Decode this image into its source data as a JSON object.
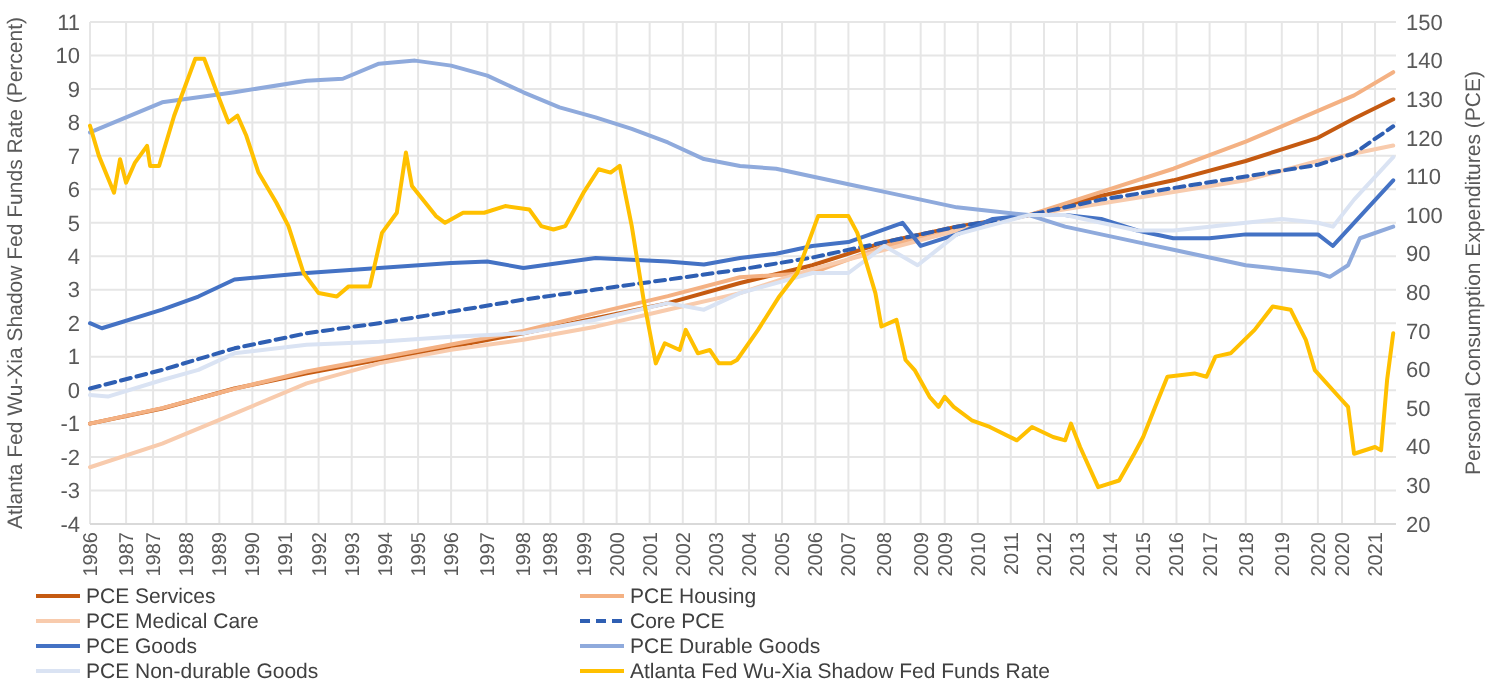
{
  "chart_data": {
    "type": "line",
    "ylabel": "Atlanta Fed Wu-Xia Shadow Fed Funds Rate (Percent)",
    "y2label": "Personal Consumption Expenditures (PCE)",
    "xlim": [
      "1986-01",
      "2022-03"
    ],
    "xticks": [
      {
        "value": "1986-01",
        "label": "1986"
      },
      {
        "value": "1987-01",
        "label": "1987"
      },
      {
        "value": "1987-10",
        "label": "1987"
      },
      {
        "value": "1988-09",
        "label": "1988"
      },
      {
        "value": "1989-08",
        "label": "1989"
      },
      {
        "value": "1990-07",
        "label": "1990"
      },
      {
        "value": "1991-06",
        "label": "1991"
      },
      {
        "value": "1992-05",
        "label": "1992"
      },
      {
        "value": "1993-04",
        "label": "1993"
      },
      {
        "value": "1994-03",
        "label": "1994"
      },
      {
        "value": "1995-02",
        "label": "1995"
      },
      {
        "value": "1996-01",
        "label": "1996"
      },
      {
        "value": "1997-01",
        "label": "1997"
      },
      {
        "value": "1998-01",
        "label": "1998"
      },
      {
        "value": "1998-10",
        "label": "1998"
      },
      {
        "value": "1999-09",
        "label": "1999"
      },
      {
        "value": "2000-08",
        "label": "2000"
      },
      {
        "value": "2001-07",
        "label": "2001"
      },
      {
        "value": "2002-06",
        "label": "2002"
      },
      {
        "value": "2003-05",
        "label": "2003"
      },
      {
        "value": "2004-04",
        "label": "2004"
      },
      {
        "value": "2005-03",
        "label": "2005"
      },
      {
        "value": "2006-02",
        "label": "2006"
      },
      {
        "value": "2007-01",
        "label": "2007"
      },
      {
        "value": "2008-01",
        "label": "2008"
      },
      {
        "value": "2009-01",
        "label": "2009"
      },
      {
        "value": "2009-09",
        "label": "2009"
      },
      {
        "value": "2010-08",
        "label": "2010"
      },
      {
        "value": "2011-07",
        "label": "2011"
      },
      {
        "value": "2012-06",
        "label": "2012"
      },
      {
        "value": "2013-05",
        "label": "2013"
      },
      {
        "value": "2014-04",
        "label": "2014"
      },
      {
        "value": "2015-03",
        "label": "2015"
      },
      {
        "value": "2016-02",
        "label": "2016"
      },
      {
        "value": "2017-01",
        "label": "2017"
      },
      {
        "value": "2018-01",
        "label": "2018"
      },
      {
        "value": "2019-01",
        "label": "2019"
      },
      {
        "value": "2020-01",
        "label": "2020"
      },
      {
        "value": "2020-09",
        "label": "2020"
      },
      {
        "value": "2021-08",
        "label": "2021"
      }
    ],
    "ylim": [
      -4,
      11
    ],
    "yticks": [
      -4,
      -3,
      -2,
      -1,
      0,
      1,
      2,
      3,
      4,
      5,
      6,
      7,
      8,
      9,
      10,
      11
    ],
    "y2lim": [
      20,
      150
    ],
    "y2ticks": [
      20,
      30,
      40,
      50,
      60,
      70,
      80,
      90,
      100,
      110,
      120,
      130,
      140,
      150
    ],
    "grid": true,
    "legend": "bottom",
    "line_style": "solid",
    "series": [
      {
        "name": "PCE Services",
        "color": "#c55a11",
        "axis": "y2",
        "x": [
          "1986-01",
          "1988-01",
          "1990-01",
          "1992-01",
          "1994-01",
          "1996-01",
          "1998-01",
          "2000-01",
          "2002-01",
          "2004-01",
          "2006-01",
          "2008-01",
          "2010-01",
          "2012-01",
          "2014-01",
          "2016-01",
          "2018-01",
          "2020-01",
          "2021-01",
          "2022-02"
        ],
        "values": [
          46,
          49.9,
          55.1,
          59,
          62.5,
          65.9,
          69.4,
          73.3,
          77.2,
          82.4,
          87,
          93,
          97,
          100,
          105,
          109,
          114,
          120,
          125,
          130
        ]
      },
      {
        "name": "PCE Housing",
        "color": "#f4b183",
        "axis": "y2",
        "x": [
          "1986-01",
          "1988-01",
          "1990-01",
          "1992-01",
          "1994-01",
          "1996-01",
          "1998-01",
          "2000-01",
          "2002-01",
          "2004-01",
          "2006-01",
          "2008-01",
          "2010-01",
          "2012-01",
          "2014-01",
          "2016-01",
          "2018-01",
          "2020-01",
          "2021-01",
          "2022-02"
        ],
        "values": [
          46,
          50,
          55,
          59.5,
          63,
          66.5,
          70,
          74.6,
          79,
          83.9,
          85,
          92,
          96,
          100,
          106,
          112,
          119,
          127,
          131,
          137
        ]
      },
      {
        "name": "PCE Medical Care",
        "color": "#f8cbad",
        "axis": "y2",
        "x": [
          "1986-01",
          "1988-01",
          "1990-01",
          "1992-01",
          "1994-01",
          "1996-01",
          "1998-01",
          "2000-01",
          "2002-01",
          "2004-01",
          "2006-01",
          "2008-01",
          "2010-01",
          "2012-01",
          "2014-01",
          "2016-01",
          "2018-01",
          "2020-01",
          "2022-02"
        ],
        "values": [
          34.7,
          40.8,
          48.6,
          56.4,
          61.6,
          65.1,
          67.7,
          71.1,
          75.5,
          79.8,
          86,
          91,
          96,
          100,
          103,
          106,
          109,
          114,
          118
        ]
      },
      {
        "name": "Core PCE",
        "color": "#2f5fb3",
        "axis": "y2",
        "line_style": "dashed",
        "x": [
          "1986-01",
          "1988-01",
          "1990-01",
          "1992-01",
          "1994-01",
          "1996-01",
          "1998-01",
          "2000-01",
          "2002-01",
          "2004-01",
          "2006-01",
          "2008-01",
          "2010-01",
          "2012-01",
          "2014-01",
          "2016-01",
          "2018-01",
          "2020-01",
          "2021-01",
          "2022-02"
        ],
        "values": [
          55.1,
          59.9,
          65.5,
          69.4,
          72,
          75,
          78.1,
          80.7,
          83.3,
          85.9,
          89,
          93,
          97,
          100,
          104,
          107,
          110,
          113,
          116,
          123
        ]
      },
      {
        "name": "PCE Goods",
        "color": "#4472c4",
        "axis": "y2",
        "x": [
          "1986-01",
          "1986-05",
          "1988-01",
          "1989-01",
          "1990-01",
          "1992-01",
          "1994-01",
          "1996-01",
          "1997-01",
          "1998-01",
          "2000-01",
          "2002-01",
          "2003-01",
          "2004-01",
          "2005-01",
          "2006-01",
          "2007-01",
          "2008-07",
          "2009-01",
          "2010-01",
          "2011-01",
          "2012-01",
          "2013-01",
          "2014-01",
          "2015-01",
          "2016-01",
          "2017-01",
          "2018-01",
          "2019-01",
          "2020-01",
          "2020-06",
          "2021-01",
          "2022-02"
        ],
        "values": [
          72,
          70.7,
          75.5,
          78.9,
          83.3,
          85,
          86.3,
          87.6,
          88,
          86.3,
          88.9,
          88,
          87.2,
          88.9,
          90,
          92,
          93,
          98,
          92,
          95,
          99,
          100,
          100,
          99,
          96,
          94,
          94,
          95,
          95,
          95,
          92,
          98,
          109
        ]
      },
      {
        "name": "PCE Durable Goods",
        "color": "#8faadc",
        "axis": "y2",
        "x": [
          "1986-01",
          "1988-01",
          "1990-01",
          "1992-01",
          "1993-01",
          "1994-01",
          "1995-01",
          "1996-01",
          "1997-01",
          "1998-01",
          "1999-01",
          "2000-01",
          "2001-01",
          "2002-01",
          "2003-01",
          "2004-01",
          "2005-01",
          "2006-01",
          "2007-01",
          "2008-01",
          "2009-01",
          "2010-01",
          "2011-01",
          "2012-01",
          "2013-01",
          "2014-01",
          "2015-01",
          "2016-01",
          "2017-01",
          "2018-01",
          "2019-01",
          "2020-01",
          "2020-05",
          "2020-11",
          "2021-03",
          "2022-02"
        ],
        "values": [
          121.4,
          129.2,
          131.8,
          134.8,
          135.3,
          139.2,
          140,
          138.7,
          136.1,
          131.8,
          127.9,
          125.3,
          122.3,
          118.8,
          114.5,
          112.7,
          112,
          110,
          108,
          106,
          104,
          102,
          101,
          100,
          97,
          95,
          93,
          91,
          89,
          87,
          86,
          85,
          84,
          87,
          94,
          97
        ]
      },
      {
        "name": "PCE Non-durable Goods",
        "color": "#dae3f3",
        "axis": "y2",
        "x": [
          "1986-01",
          "1986-07",
          "1988-01",
          "1989-01",
          "1990-01",
          "1992-01",
          "1994-01",
          "1996-01",
          "1998-01",
          "2000-01",
          "2002-01",
          "2003-01",
          "2004-01",
          "2006-01",
          "2007-01",
          "2008-01",
          "2008-12",
          "2010-01",
          "2012-01",
          "2013-01",
          "2014-01",
          "2015-01",
          "2016-01",
          "2017-01",
          "2018-01",
          "2019-01",
          "2020-01",
          "2020-06",
          "2021-01",
          "2022-02"
        ],
        "values": [
          53.4,
          53,
          57.3,
          59.9,
          64.2,
          66.4,
          67.2,
          68.5,
          69.4,
          72.9,
          77.2,
          75.5,
          79.8,
          85,
          85,
          92,
          87,
          95,
          100,
          100,
          98,
          96,
          96,
          97,
          98,
          99,
          98,
          97,
          104,
          115
        ]
      },
      {
        "name": "Atlanta Fed Wu-Xia Shadow Fed Funds Rate",
        "color": "#ffc000",
        "x": [
          "1986-01",
          "1986-04",
          "1986-09",
          "1986-11",
          "1987-01",
          "1987-04",
          "1987-08",
          "1987-09",
          "1987-12",
          "1988-05",
          "1988-12",
          "1989-03",
          "1989-08",
          "1989-11",
          "1990-02",
          "1990-05",
          "1990-09",
          "1991-03",
          "1991-07",
          "1991-12",
          "1992-05",
          "1992-11",
          "1993-03",
          "1993-10",
          "1994-02",
          "1994-07",
          "1994-10",
          "1994-12",
          "1995-08",
          "1995-11",
          "1996-05",
          "1996-12",
          "1997-07",
          "1998-03",
          "1998-07",
          "1998-11",
          "1999-03",
          "1999-09",
          "2000-02",
          "2000-06",
          "2000-09",
          "2001-01",
          "2001-05",
          "2001-09",
          "2001-12",
          "2002-05",
          "2002-07",
          "2002-11",
          "2003-03",
          "2003-06",
          "2003-10",
          "2003-12",
          "2004-07",
          "2005-02",
          "2005-08",
          "2006-03",
          "2007-01",
          "2007-04",
          "2007-10",
          "2007-12",
          "2008-05",
          "2008-08",
          "2008-11",
          "2009-04",
          "2009-07",
          "2009-09",
          "2009-12",
          "2010-06",
          "2010-12",
          "2011-09",
          "2012-02",
          "2012-09",
          "2013-01",
          "2013-03",
          "2013-06",
          "2013-12",
          "2014-07",
          "2014-12",
          "2015-03",
          "2015-07",
          "2015-11",
          "2016-08",
          "2016-12",
          "2017-03",
          "2017-08",
          "2018-04",
          "2018-10",
          "2019-04",
          "2019-09",
          "2019-12",
          "2020-07",
          "2020-11",
          "2021-01",
          "2021-08",
          "2021-10",
          "2021-12",
          "2022-02"
        ],
        "values": [
          7.9,
          7,
          5.9,
          6.9,
          6.2,
          6.8,
          7.3,
          6.7,
          6.7,
          8.2,
          9.9,
          9.9,
          8.7,
          8,
          8.2,
          7.6,
          6.5,
          5.6,
          4.9,
          3.5,
          2.9,
          2.8,
          3.1,
          3.1,
          4.7,
          5.3,
          7.1,
          6.1,
          5.2,
          5,
          5.3,
          5.3,
          5.5,
          5.4,
          4.9,
          4.8,
          4.9,
          5.9,
          6.6,
          6.5,
          6.7,
          4.9,
          2.7,
          0.8,
          1.4,
          1.2,
          1.8,
          1.1,
          1.2,
          0.8,
          0.8,
          0.9,
          1.8,
          2.8,
          3.5,
          5.2,
          5.2,
          4.7,
          2.9,
          1.9,
          2.1,
          0.9,
          0.6,
          -0.2,
          -0.5,
          -0.2,
          -0.5,
          -0.9,
          -1.1,
          -1.5,
          -1.1,
          -1.4,
          -1.5,
          -1,
          -1.7,
          -2.9,
          -2.7,
          -1.9,
          -1.4,
          -0.5,
          0.4,
          0.5,
          0.4,
          1,
          1.1,
          1.8,
          2.5,
          2.4,
          1.5,
          0.6,
          -0.1,
          -0.5,
          -1.9,
          -1.7,
          -1.8,
          0.3,
          1.7
        ]
      }
    ]
  }
}
